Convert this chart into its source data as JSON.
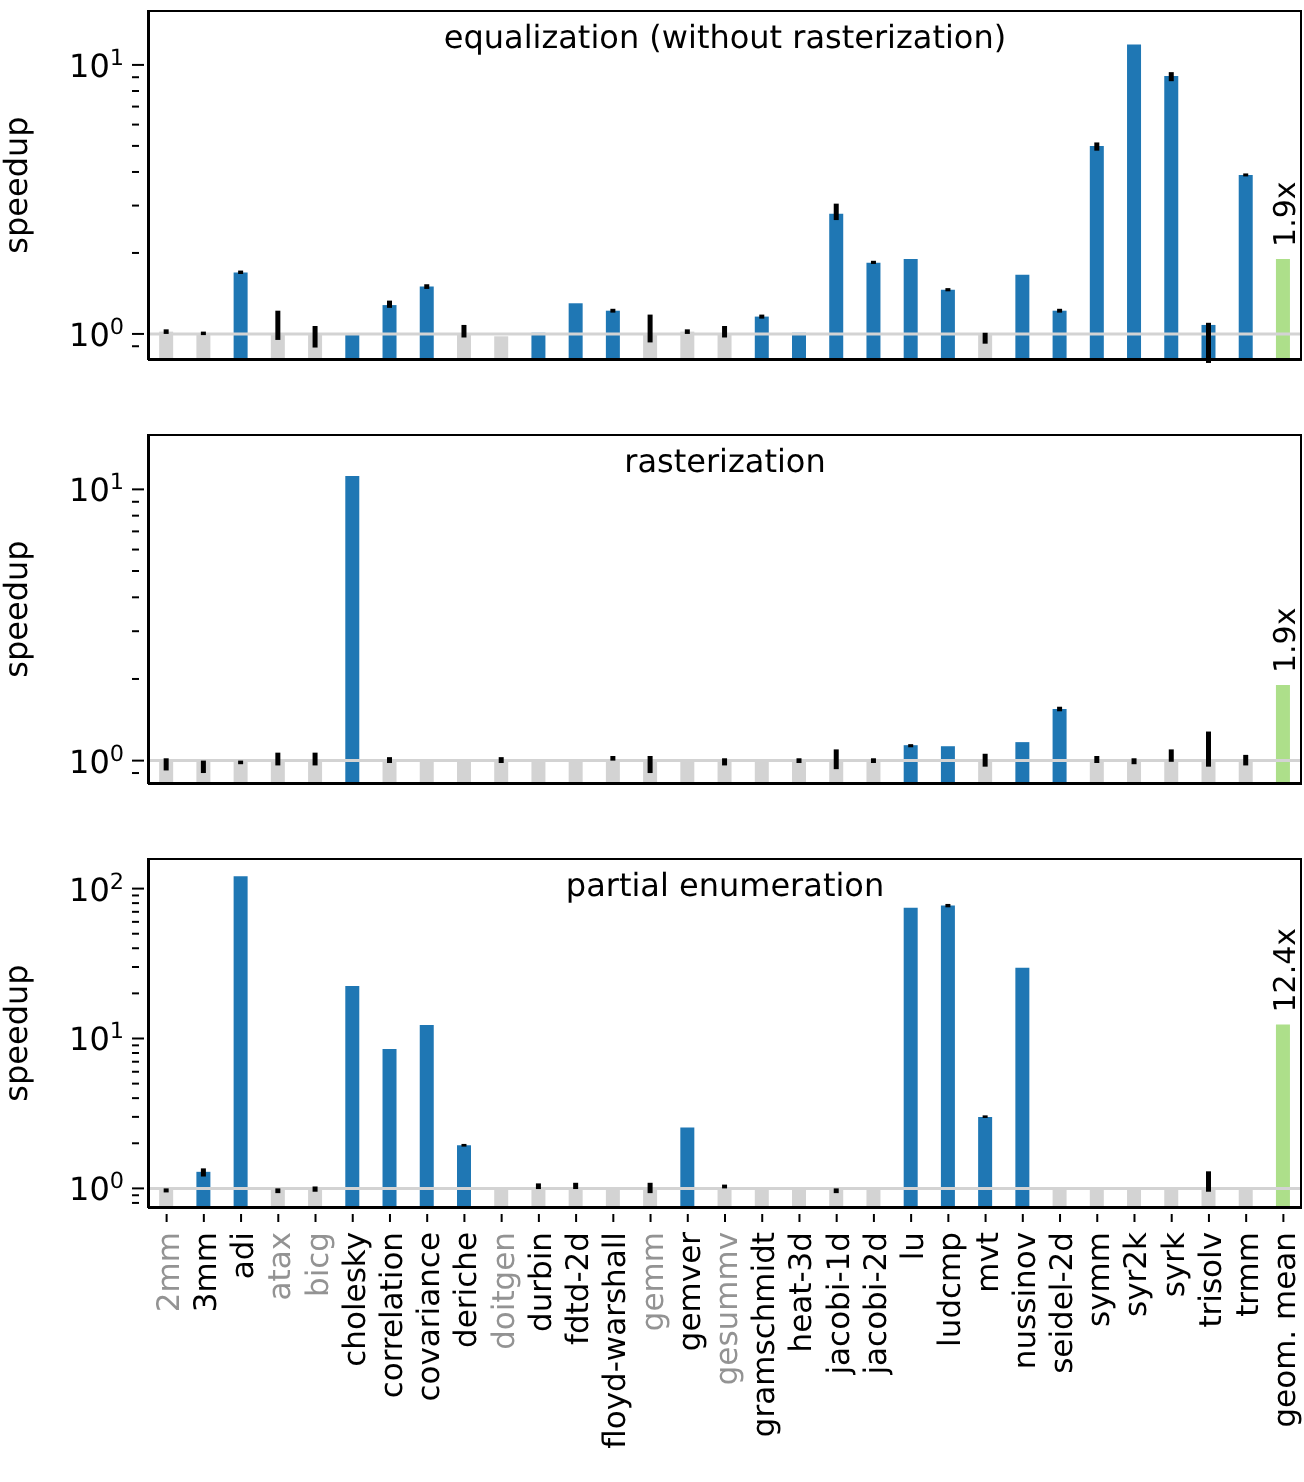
{
  "chart_data": [
    {
      "type": "bar",
      "title": "equalization (without rasterization)",
      "ylabel": "speedup",
      "log": true,
      "tick_labels": "y",
      "categories": [
        null,
        null,
        null,
        null,
        null,
        null,
        null,
        null,
        null,
        null,
        null,
        null,
        null,
        null,
        null,
        null,
        null,
        null,
        null,
        null,
        null,
        null,
        null,
        null,
        null,
        null,
        null,
        null,
        null,
        null,
        null
      ],
      "values": [
        1.02,
        1.0,
        1.69,
        1.0,
        1.0,
        1.0,
        1.28,
        1.5,
        1.0,
        0.98,
        1.01,
        1.3,
        1.22,
        1.0,
        1.02,
        1.0,
        1.16,
        1.01,
        2.8,
        1.84,
        1.9,
        1.46,
        1.0,
        1.66,
        1.22,
        5.0,
        11.9,
        9.1,
        1.08,
        3.9,
        1.9
      ],
      "colors": [
        "#d3d3d3",
        "#d3d3d3",
        "#1f77b4",
        "#d3d3d3",
        "#d3d3d3",
        "#1f77b4",
        "#1f77b4",
        "#1f77b4",
        "#d3d3d3",
        "#d3d3d3",
        "#1f77b4",
        "#1f77b4",
        "#1f77b4",
        "#d3d3d3",
        "#d3d3d3",
        "#d3d3d3",
        "#1f77b4",
        "#1f77b4",
        "#1f77b4",
        "#1f77b4",
        "#1f77b4",
        "#1f77b4",
        "#d3d3d3",
        "#1f77b4",
        "#1f77b4",
        "#1f77b4",
        "#1f77b4",
        "#1f77b4",
        "#1f77b4",
        "#1f77b4",
        "#addf8a"
      ],
      "errors": [
        [
          1.0,
          1.04
        ],
        [
          0.99,
          1.02
        ],
        [
          1.67,
          1.72
        ],
        [
          0.95,
          1.22
        ],
        [
          0.89,
          1.07
        ],
        null,
        [
          1.25,
          1.33
        ],
        [
          1.47,
          1.53
        ],
        [
          0.97,
          1.08
        ],
        null,
        null,
        null,
        [
          1.2,
          1.24
        ],
        [
          0.93,
          1.18
        ],
        [
          1.0,
          1.04
        ],
        [
          0.97,
          1.07
        ],
        [
          1.14,
          1.18
        ],
        null,
        [
          2.65,
          3.05
        ],
        [
          1.82,
          1.87
        ],
        null,
        [
          1.44,
          1.48
        ],
        [
          0.92,
          1.01
        ],
        null,
        [
          1.2,
          1.24
        ],
        [
          4.8,
          5.15
        ],
        null,
        [
          8.7,
          9.4
        ],
        [
          0.78,
          1.1
        ],
        [
          3.85,
          3.95
        ],
        null
      ],
      "value_labels": [
        null,
        null,
        null,
        null,
        null,
        null,
        null,
        null,
        null,
        null,
        null,
        null,
        null,
        null,
        null,
        null,
        null,
        null,
        null,
        null,
        null,
        null,
        null,
        null,
        null,
        null,
        null,
        null,
        null,
        null,
        "1.9x"
      ],
      "ylim": [
        0.8,
        16
      ],
      "yticks": [
        {
          "value": 0.9,
          "label": null
        },
        {
          "value": 1,
          "label": "10$^{0}$"
        },
        {
          "value": 2,
          "label": null
        },
        {
          "value": 3,
          "label": null
        },
        {
          "value": 4,
          "label": null
        },
        {
          "value": 5,
          "label": null
        },
        {
          "value": 6,
          "label": null
        },
        {
          "value": 7,
          "label": null
        },
        {
          "value": 8,
          "label": null
        },
        {
          "value": 9,
          "label": null
        },
        {
          "value": 10,
          "label": "10$^{1}$"
        }
      ],
      "ref_lines": [
        {
          "axis": "y",
          "value": 1,
          "color": "#d3d3d3"
        }
      ]
    },
    {
      "type": "bar",
      "title": "rasterization",
      "ylabel": "speedup",
      "log": true,
      "tick_labels": "y",
      "categories": [
        null,
        null,
        null,
        null,
        null,
        null,
        null,
        null,
        null,
        null,
        null,
        null,
        null,
        null,
        null,
        null,
        null,
        null,
        null,
        null,
        null,
        null,
        null,
        null,
        null,
        null,
        null,
        null,
        null,
        null,
        null
      ],
      "values": [
        1.0,
        1.0,
        1.0,
        1.0,
        1.0,
        11.2,
        1.0,
        1.0,
        1.0,
        1.0,
        1.0,
        1.0,
        1.0,
        1.0,
        1.0,
        1.0,
        1.0,
        1.0,
        1.0,
        1.0,
        1.14,
        1.13,
        1.0,
        1.17,
        1.55,
        1.0,
        1.0,
        1.0,
        1.0,
        1.0,
        1.9
      ],
      "colors": [
        "#d3d3d3",
        "#d3d3d3",
        "#d3d3d3",
        "#d3d3d3",
        "#d3d3d3",
        "#1f77b4",
        "#d3d3d3",
        "#d3d3d3",
        "#d3d3d3",
        "#d3d3d3",
        "#d3d3d3",
        "#d3d3d3",
        "#d3d3d3",
        "#d3d3d3",
        "#d3d3d3",
        "#d3d3d3",
        "#d3d3d3",
        "#d3d3d3",
        "#d3d3d3",
        "#d3d3d3",
        "#1f77b4",
        "#1f77b4",
        "#d3d3d3",
        "#1f77b4",
        "#1f77b4",
        "#d3d3d3",
        "#d3d3d3",
        "#d3d3d3",
        "#d3d3d3",
        "#d3d3d3",
        "#addf8a"
      ],
      "errors": [
        [
          0.92,
          1.02
        ],
        [
          0.9,
          1.0
        ],
        [
          0.97,
          1.0
        ],
        [
          0.96,
          1.07
        ],
        [
          0.96,
          1.07
        ],
        null,
        [
          0.98,
          1.03
        ],
        null,
        null,
        [
          0.98,
          1.03
        ],
        null,
        null,
        [
          1.0,
          1.04
        ],
        [
          0.9,
          1.04
        ],
        null,
        [
          0.96,
          1.02
        ],
        null,
        [
          0.98,
          1.02
        ],
        [
          0.93,
          1.1
        ],
        [
          0.98,
          1.02
        ],
        [
          1.12,
          1.15
        ],
        null,
        [
          0.95,
          1.06
        ],
        null,
        [
          1.52,
          1.58
        ],
        [
          0.98,
          1.04
        ],
        [
          0.97,
          1.02
        ],
        [
          0.99,
          1.1
        ],
        [
          0.95,
          1.28
        ],
        [
          0.96,
          1.05
        ],
        null
      ],
      "value_labels": [
        null,
        null,
        null,
        null,
        null,
        null,
        null,
        null,
        null,
        null,
        null,
        null,
        null,
        null,
        null,
        null,
        null,
        null,
        null,
        null,
        null,
        null,
        null,
        null,
        null,
        null,
        null,
        null,
        null,
        null,
        "1.9x"
      ],
      "ylim": [
        0.82,
        16
      ],
      "yticks": [
        {
          "value": 0.9,
          "label": null
        },
        {
          "value": 1,
          "label": "10$^{0}$"
        },
        {
          "value": 2,
          "label": null
        },
        {
          "value": 3,
          "label": null
        },
        {
          "value": 4,
          "label": null
        },
        {
          "value": 5,
          "label": null
        },
        {
          "value": 6,
          "label": null
        },
        {
          "value": 7,
          "label": null
        },
        {
          "value": 8,
          "label": null
        },
        {
          "value": 9,
          "label": null
        },
        {
          "value": 10,
          "label": "10$^{1}$"
        }
      ],
      "ref_lines": [
        {
          "axis": "y",
          "value": 1,
          "color": "#d3d3d3"
        }
      ]
    },
    {
      "type": "bar",
      "title": "partial enumeration",
      "ylabel": "speedup",
      "log": true,
      "categories": [
        "2mm",
        "3mm",
        "adi",
        "atax",
        "bicg",
        "cholesky",
        "correlation",
        "covariance",
        "deriche",
        "doitgen",
        "durbin",
        "fdtd-2d",
        "floyd-warshall",
        "gemm",
        "gemver",
        "gesummv",
        "gramschmidt",
        "heat-3d",
        "jacobi-1d",
        "jacobi-2d",
        "lu",
        "ludcmp",
        "mvt",
        "nussinov",
        "seidel-2d",
        "symm",
        "syr2k",
        "syrk",
        "trisolv",
        "trmm",
        "geom. mean"
      ],
      "values": [
        1.0,
        1.29,
        121,
        1.0,
        1.0,
        22.4,
        8.5,
        12.3,
        1.94,
        1.0,
        1.0,
        1.0,
        1.0,
        1.0,
        2.55,
        1.0,
        1.0,
        1.0,
        1.0,
        1.0,
        74.5,
        77,
        3.0,
        29.7,
        1.0,
        1.0,
        1.0,
        1.0,
        1.0,
        1.0,
        12.4
      ],
      "colors": [
        "#d3d3d3",
        "#1f77b4",
        "#1f77b4",
        "#d3d3d3",
        "#d3d3d3",
        "#1f77b4",
        "#1f77b4",
        "#1f77b4",
        "#1f77b4",
        "#d3d3d3",
        "#d3d3d3",
        "#d3d3d3",
        "#d3d3d3",
        "#d3d3d3",
        "#1f77b4",
        "#d3d3d3",
        "#d3d3d3",
        "#d3d3d3",
        "#d3d3d3",
        "#d3d3d3",
        "#1f77b4",
        "#1f77b4",
        "#1f77b4",
        "#1f77b4",
        "#d3d3d3",
        "#d3d3d3",
        "#d3d3d3",
        "#d3d3d3",
        "#d3d3d3",
        "#d3d3d3",
        "#addf8a"
      ],
      "errors": [
        [
          0.94,
          1.0
        ],
        [
          1.2,
          1.36
        ],
        null,
        [
          0.93,
          1.0
        ],
        [
          0.95,
          1.03
        ],
        null,
        null,
        null,
        [
          1.9,
          1.98
        ],
        null,
        [
          0.99,
          1.08
        ],
        [
          0.99,
          1.09
        ],
        null,
        [
          0.93,
          1.09
        ],
        null,
        [
          1.0,
          1.06
        ],
        null,
        null,
        [
          0.93,
          1.0
        ],
        null,
        null,
        [
          75,
          79
        ],
        [
          2.95,
          3.07
        ],
        null,
        null,
        null,
        null,
        null,
        [
          0.95,
          1.3
        ],
        null,
        null
      ],
      "value_labels": [
        null,
        null,
        null,
        null,
        null,
        null,
        null,
        null,
        null,
        null,
        null,
        null,
        null,
        null,
        null,
        null,
        null,
        null,
        null,
        null,
        null,
        null,
        null,
        null,
        null,
        null,
        null,
        null,
        null,
        null,
        "12.4x"
      ],
      "ylim": [
        0.74,
        160
      ],
      "yticks": [
        {
          "value": 0.8,
          "label": null
        },
        {
          "value": 0.9,
          "label": null
        },
        {
          "value": 1,
          "label": "10$^{0}$"
        },
        {
          "value": 2,
          "label": null
        },
        {
          "value": 3,
          "label": null
        },
        {
          "value": 4,
          "label": null
        },
        {
          "value": 5,
          "label": null
        },
        {
          "value": 6,
          "label": null
        },
        {
          "value": 7,
          "label": null
        },
        {
          "value": 8,
          "label": null
        },
        {
          "value": 9,
          "label": null
        },
        {
          "value": 10,
          "label": "10$^{1}$"
        },
        {
          "value": 20,
          "label": null
        },
        {
          "value": 30,
          "label": null
        },
        {
          "value": 40,
          "label": null
        },
        {
          "value": 50,
          "label": null
        },
        {
          "value": 60,
          "label": null
        },
        {
          "value": 70,
          "label": null
        },
        {
          "value": 80,
          "label": null
        },
        {
          "value": 90,
          "label": null
        },
        {
          "value": 100,
          "label": "10$^{2}$"
        }
      ],
      "ref_lines": [
        {
          "axis": "y",
          "value": 1,
          "color": "#d3d3d3"
        }
      ]
    }
  ]
}
